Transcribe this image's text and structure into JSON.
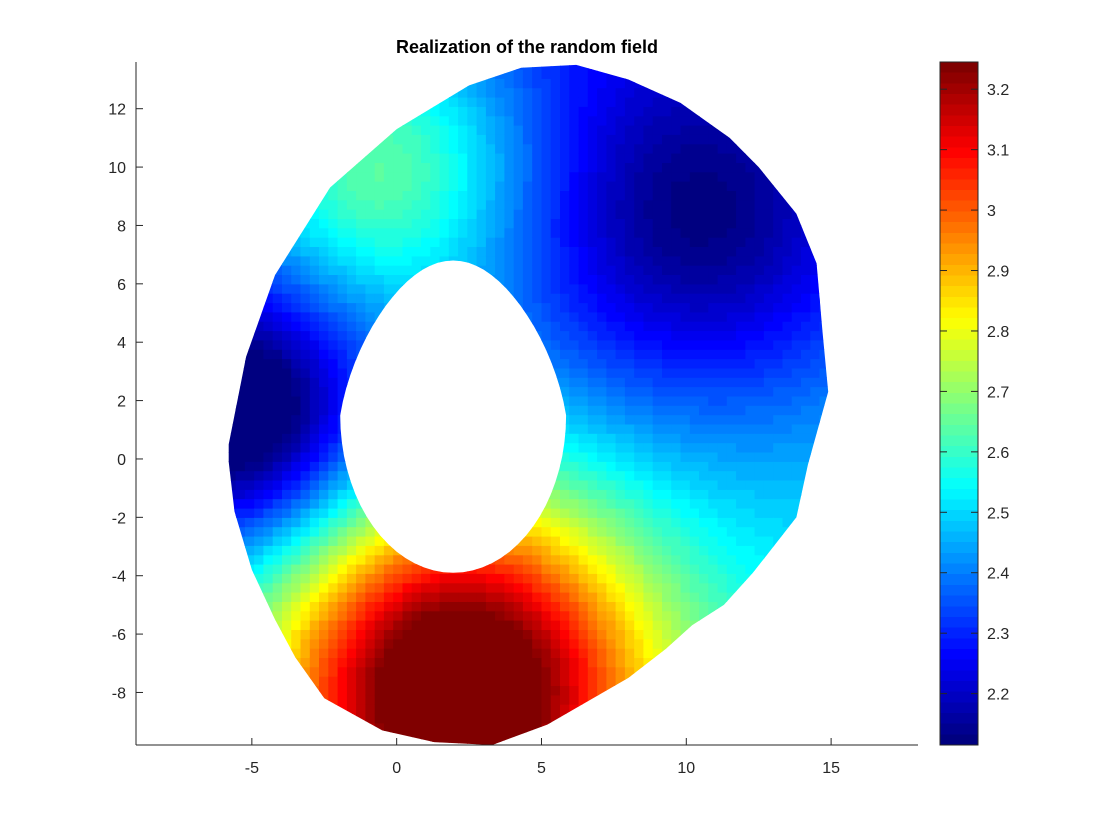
{
  "chart_data": {
    "type": "heatmap",
    "title": "Realization of the random field",
    "xlabel": "",
    "ylabel": "",
    "xlim": [
      -9,
      18
    ],
    "ylim": [
      -9.8,
      13.6
    ],
    "xticks": [
      -5,
      0,
      5,
      10,
      15
    ],
    "yticks": [
      -8,
      -6,
      -4,
      -2,
      0,
      2,
      4,
      6,
      8,
      10,
      12
    ],
    "colorbar": {
      "range": [
        2.115,
        3.245
      ],
      "ticks": [
        2.2,
        2.3,
        2.4,
        2.5,
        2.6,
        2.7,
        2.8,
        2.9,
        3.0,
        3.1,
        3.2
      ],
      "tick_labels": [
        "2.2",
        "2.3",
        "2.4",
        "2.5",
        "2.6",
        "2.7",
        "2.8",
        "2.9",
        "3",
        "3.1",
        "3.2"
      ],
      "colormap": "jet",
      "placement": "right"
    },
    "grid": false,
    "domain": {
      "outer_boundary": [
        [
          -5.8,
          0.5
        ],
        [
          -5.2,
          3.5
        ],
        [
          -4.2,
          6.3
        ],
        [
          -2.3,
          9.3
        ],
        [
          0,
          11.3
        ],
        [
          2.5,
          12.8
        ],
        [
          4.3,
          13.4
        ],
        [
          6.2,
          13.5
        ],
        [
          8.0,
          13.0
        ],
        [
          9.8,
          12.2
        ],
        [
          11.5,
          11.0
        ],
        [
          12.5,
          10.0
        ],
        [
          13.8,
          8.4
        ],
        [
          14.5,
          6.7
        ],
        [
          14.7,
          4.4
        ],
        [
          14.9,
          2.3
        ],
        [
          14.2,
          -0.2
        ],
        [
          13.8,
          -2.0
        ],
        [
          12.3,
          -3.9
        ],
        [
          11.3,
          -5.0
        ],
        [
          10.2,
          -5.7
        ],
        [
          9.3,
          -6.5
        ],
        [
          8.0,
          -7.5
        ],
        [
          5.2,
          -9.1
        ],
        [
          3.3,
          -9.8
        ],
        [
          1.3,
          -9.7
        ],
        [
          -0.5,
          -9.3
        ],
        [
          -2.5,
          -8.2
        ],
        [
          -3.5,
          -6.8
        ],
        [
          -4.2,
          -5.5
        ],
        [
          -5.0,
          -3.8
        ],
        [
          -5.6,
          -1.8
        ],
        [
          -5.8,
          -0.1
        ]
      ],
      "hole_center": [
        1.95,
        1.5
      ],
      "hole_radius_x": 3.9,
      "hole_top_y": 6.8,
      "hole_bottom_y": -3.9,
      "hole_shift_x": 1.1,
      "hole_shift_y": 0
    },
    "field_peaks": [
      {
        "x": 2.1,
        "y": -7.7,
        "value": 3.245
      },
      {
        "x": 10.6,
        "y": 7.9,
        "value": 2.225
      },
      {
        "x": -5.3,
        "y": 1.3,
        "value": 2.115
      },
      {
        "x": -0.6,
        "y": 10.2,
        "value": 2.74
      }
    ]
  }
}
